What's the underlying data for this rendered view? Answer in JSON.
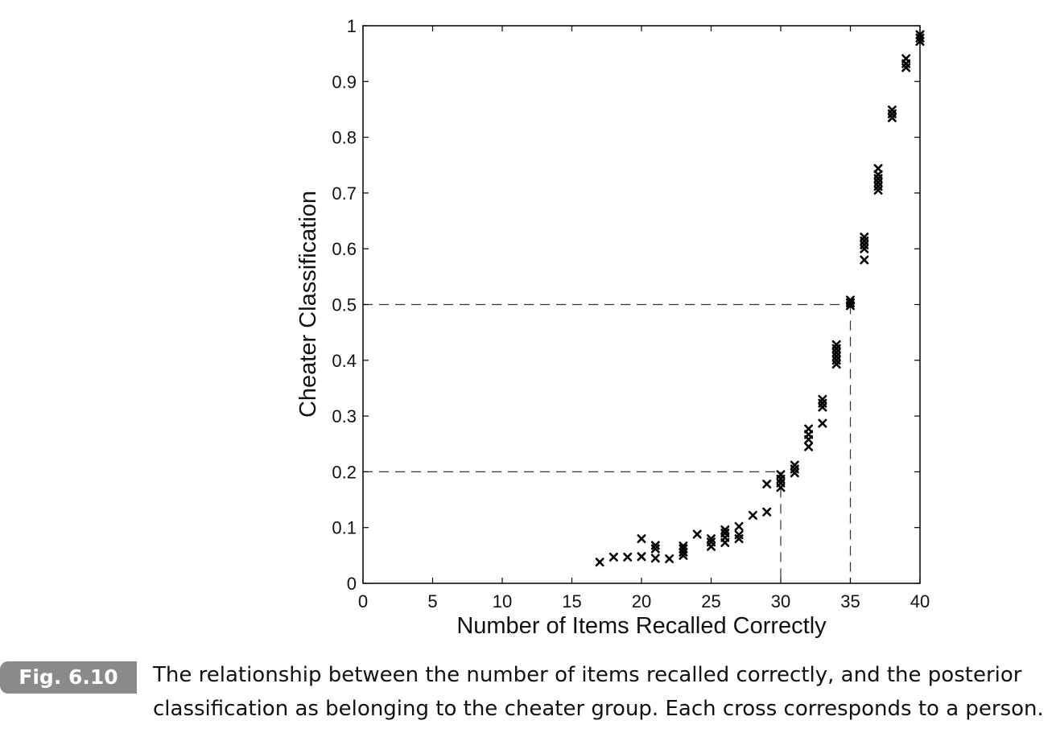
{
  "chart_data": {
    "type": "scatter",
    "xlabel": "Number of Items Recalled Correctly",
    "ylabel": "Cheater Classification",
    "xlim": [
      0,
      40
    ],
    "ylim": [
      0,
      1
    ],
    "x_ticks": [
      "0",
      "5",
      "10",
      "15",
      "20",
      "25",
      "30",
      "35",
      "40"
    ],
    "y_ticks": [
      "0",
      "0.1",
      "0.2",
      "0.3",
      "0.4",
      "0.5",
      "0.6",
      "0.7",
      "0.8",
      "0.9",
      "1"
    ],
    "marker": "x",
    "marker_color": "#000000",
    "grid": false,
    "points": [
      {
        "x": 17,
        "y": 0.038
      },
      {
        "x": 18,
        "y": 0.047
      },
      {
        "x": 19,
        "y": 0.047
      },
      {
        "x": 20,
        "y": 0.048
      },
      {
        "x": 20,
        "y": 0.08
      },
      {
        "x": 21,
        "y": 0.045
      },
      {
        "x": 21,
        "y": 0.062
      },
      {
        "x": 21,
        "y": 0.068
      },
      {
        "x": 22,
        "y": 0.044
      },
      {
        "x": 23,
        "y": 0.05
      },
      {
        "x": 23,
        "y": 0.056
      },
      {
        "x": 23,
        "y": 0.062
      },
      {
        "x": 23,
        "y": 0.067
      },
      {
        "x": 24,
        "y": 0.088
      },
      {
        "x": 25,
        "y": 0.066
      },
      {
        "x": 25,
        "y": 0.074
      },
      {
        "x": 25,
        "y": 0.08
      },
      {
        "x": 26,
        "y": 0.073
      },
      {
        "x": 26,
        "y": 0.082
      },
      {
        "x": 26,
        "y": 0.09
      },
      {
        "x": 26,
        "y": 0.096
      },
      {
        "x": 27,
        "y": 0.08
      },
      {
        "x": 27,
        "y": 0.087
      },
      {
        "x": 27,
        "y": 0.102
      },
      {
        "x": 28,
        "y": 0.122
      },
      {
        "x": 29,
        "y": 0.128
      },
      {
        "x": 29,
        "y": 0.178
      },
      {
        "x": 30,
        "y": 0.172
      },
      {
        "x": 30,
        "y": 0.18
      },
      {
        "x": 30,
        "y": 0.187
      },
      {
        "x": 30,
        "y": 0.195
      },
      {
        "x": 31,
        "y": 0.198
      },
      {
        "x": 31,
        "y": 0.205
      },
      {
        "x": 31,
        "y": 0.212
      },
      {
        "x": 32,
        "y": 0.245
      },
      {
        "x": 32,
        "y": 0.258
      },
      {
        "x": 32,
        "y": 0.267
      },
      {
        "x": 32,
        "y": 0.277
      },
      {
        "x": 33,
        "y": 0.287
      },
      {
        "x": 33,
        "y": 0.316
      },
      {
        "x": 33,
        "y": 0.323
      },
      {
        "x": 33,
        "y": 0.33
      },
      {
        "x": 34,
        "y": 0.393
      },
      {
        "x": 34,
        "y": 0.4
      },
      {
        "x": 34,
        "y": 0.407
      },
      {
        "x": 34,
        "y": 0.414
      },
      {
        "x": 34,
        "y": 0.421
      },
      {
        "x": 34,
        "y": 0.428
      },
      {
        "x": 35,
        "y": 0.498
      },
      {
        "x": 35,
        "y": 0.503
      },
      {
        "x": 35,
        "y": 0.508
      },
      {
        "x": 36,
        "y": 0.58
      },
      {
        "x": 36,
        "y": 0.6
      },
      {
        "x": 36,
        "y": 0.607
      },
      {
        "x": 36,
        "y": 0.614
      },
      {
        "x": 36,
        "y": 0.621
      },
      {
        "x": 37,
        "y": 0.705
      },
      {
        "x": 37,
        "y": 0.712
      },
      {
        "x": 37,
        "y": 0.719
      },
      {
        "x": 37,
        "y": 0.726
      },
      {
        "x": 37,
        "y": 0.733
      },
      {
        "x": 37,
        "y": 0.744
      },
      {
        "x": 38,
        "y": 0.835
      },
      {
        "x": 38,
        "y": 0.842
      },
      {
        "x": 38,
        "y": 0.849
      },
      {
        "x": 39,
        "y": 0.925
      },
      {
        "x": 39,
        "y": 0.932
      },
      {
        "x": 39,
        "y": 0.941
      },
      {
        "x": 40,
        "y": 0.972
      },
      {
        "x": 40,
        "y": 0.978
      },
      {
        "x": 40,
        "y": 0.984
      }
    ],
    "reference_lines": [
      {
        "x": 30,
        "y": 0.2,
        "style": "dashed"
      },
      {
        "x": 35,
        "y": 0.5,
        "style": "dashed"
      }
    ]
  },
  "caption": {
    "label": "Fig. 6.10",
    "text": "The relationship between the number of items recalled correctly, and the posterior classification as belonging to the cheater group. Each cross corresponds to a person."
  }
}
